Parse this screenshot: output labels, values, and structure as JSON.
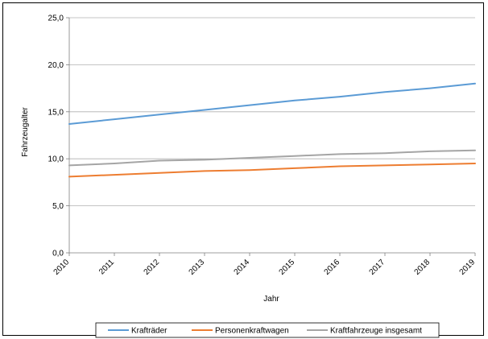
{
  "chart_data": {
    "type": "line",
    "title": "",
    "xlabel": "Jahr",
    "ylabel": "Fahrzeugalter",
    "categories": [
      "2010",
      "2011",
      "2012",
      "2013",
      "2014",
      "2015",
      "2016",
      "2017",
      "2018",
      "2019"
    ],
    "ylim": [
      0,
      25
    ],
    "yticks": [
      "0,0",
      "5,0",
      "10,0",
      "15,0",
      "20,0",
      "25,0"
    ],
    "grid": true,
    "legend_position": "bottom",
    "series": [
      {
        "name": "Krafträder",
        "color": "#5b9bd5",
        "values": [
          13.7,
          14.2,
          14.7,
          15.2,
          15.7,
          16.2,
          16.6,
          17.1,
          17.5,
          18.0
        ]
      },
      {
        "name": "Personenkraftwagen",
        "color": "#ed7d31",
        "values": [
          8.1,
          8.3,
          8.5,
          8.7,
          8.8,
          9.0,
          9.2,
          9.3,
          9.4,
          9.5
        ]
      },
      {
        "name": "Kraftfahrzeuge insgesamt",
        "color": "#a5a5a5",
        "values": [
          9.3,
          9.5,
          9.8,
          9.9,
          10.1,
          10.3,
          10.5,
          10.6,
          10.8,
          10.9
        ]
      }
    ]
  }
}
